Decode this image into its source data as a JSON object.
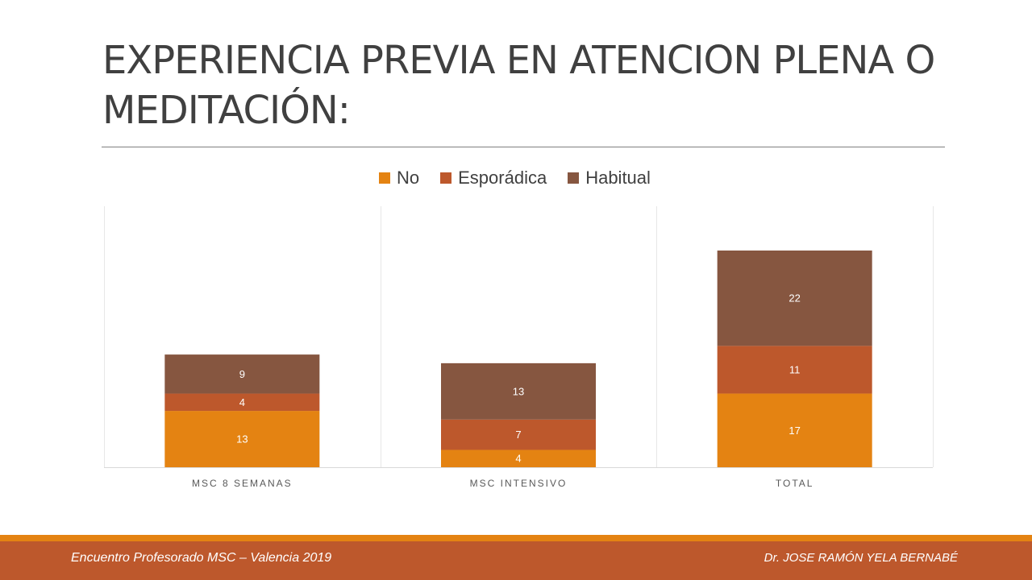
{
  "slide": {
    "title": "EXPERIENCIA PREVIA EN ATENCION PLENA O MEDITACIÓN:",
    "footer_left": "Encuentro Profesorado MSC – Valencia 2019",
    "footer_right": "Dr. JOSE RAMÓN YELA BERNABÉ"
  },
  "colors": {
    "no": "#e48312",
    "esporadica": "#bd582c",
    "habitual": "#865640",
    "footer_band": "#bd582c",
    "footer_stripe": "#e48312"
  },
  "chart_data": {
    "type": "bar",
    "stacked": true,
    "categories": [
      "MSC 8 SEMANAS",
      "MSC INTENSIVO",
      "TOTAL"
    ],
    "series": [
      {
        "name": "No",
        "values": [
          13,
          4,
          17
        ]
      },
      {
        "name": "Esporádica",
        "values": [
          4,
          7,
          11
        ]
      },
      {
        "name": "Habitual",
        "values": [
          9,
          13,
          22
        ]
      }
    ],
    "legend": "top",
    "grid": false,
    "data_labels": true
  }
}
